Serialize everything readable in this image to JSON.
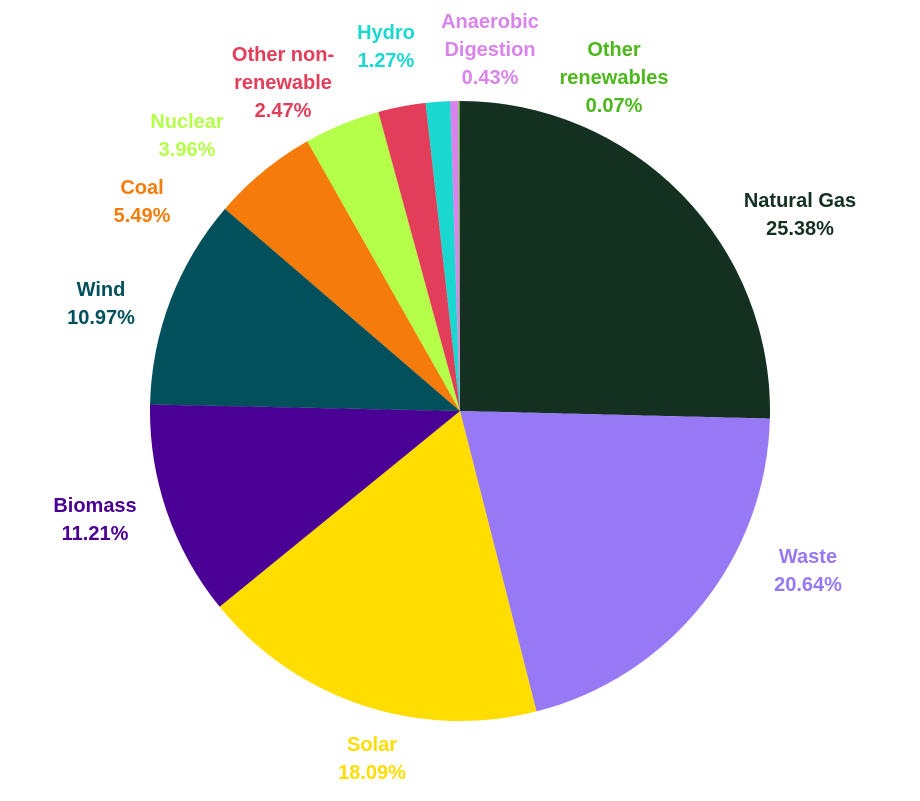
{
  "chart_data": {
    "type": "pie",
    "categories": [
      "Natural Gas",
      "Waste",
      "Solar",
      "Biomass",
      "Wind",
      "Coal",
      "Nuclear",
      "Other non-renewable",
      "Hydro",
      "Anaerobic Digestion",
      "Other renewables"
    ],
    "values": [
      25.38,
      20.64,
      18.09,
      11.21,
      10.97,
      5.49,
      3.96,
      2.47,
      1.27,
      0.43,
      0.07
    ],
    "value_labels": [
      "25.38%",
      "20.64%",
      "18.09%",
      "11.21%",
      "10.97%",
      "5.49%",
      "3.96%",
      "2.47%",
      "1.27%",
      "0.43%",
      "0.07%"
    ],
    "colors": [
      "#143021",
      "#9778f5",
      "#ffdd00",
      "#4b0095",
      "#01505c",
      "#f57c0a",
      "#b5ff4a",
      "#e23e5a",
      "#1ad8d0",
      "#d884ec",
      "#4cb81c"
    ]
  }
}
